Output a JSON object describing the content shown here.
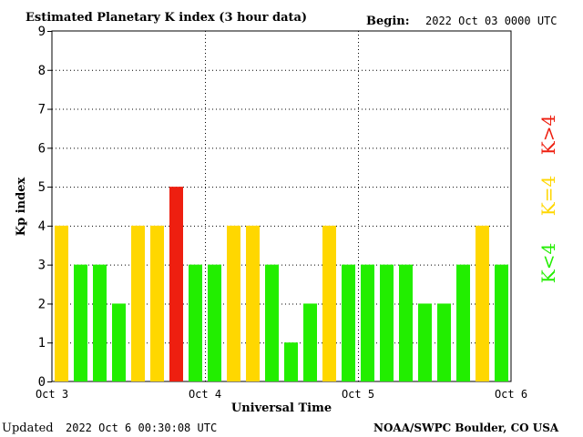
{
  "header": {
    "title": "Estimated Planetary K index (3 hour data)",
    "begin_label": "Begin:",
    "begin_value": "2022 Oct 03 0000 UTC"
  },
  "footer": {
    "updated_label": "Updated",
    "updated_value": "2022 Oct  6 00:30:08 UTC",
    "source": "NOAA/SWPC Boulder, CO USA"
  },
  "legend": {
    "green_label": "K<4",
    "yellow_label": "K=4",
    "red_label": "K>4"
  },
  "colors": {
    "green": "#22ee00",
    "yellow": "#ffd700",
    "red": "#ee1f10"
  },
  "chart_data": {
    "type": "bar",
    "title": "Estimated Planetary K index (3 hour data)",
    "xlabel": "Universal Time",
    "ylabel": "Kp index",
    "ylim": [
      0,
      9
    ],
    "yticks": [
      "0",
      "1",
      "2",
      "3",
      "4",
      "5",
      "6",
      "7",
      "8",
      "9"
    ],
    "xticks": [
      "Oct 3",
      "Oct 4",
      "Oct 5",
      "Oct 6"
    ],
    "grid": true,
    "legend_position": "right",
    "values": [
      4,
      3,
      3,
      2,
      4,
      4,
      5,
      3,
      3,
      4,
      4,
      3,
      1,
      2,
      4,
      3,
      3,
      3,
      3,
      2,
      2,
      3,
      4,
      3
    ]
  }
}
